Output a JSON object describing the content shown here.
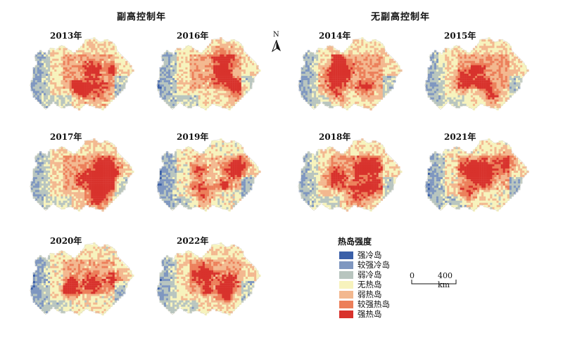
{
  "groups": {
    "with_control": "副高控制年",
    "without_control": "无副高控制年"
  },
  "panels": [
    {
      "year": "2013年",
      "seed": 11,
      "warm": 0.3
    },
    {
      "year": "2016年",
      "seed": 23,
      "warm": 0.25
    },
    {
      "year": "2017年",
      "seed": 37,
      "warm": 0.45
    },
    {
      "year": "2019年",
      "seed": 41,
      "warm": 0.05
    },
    {
      "year": "2020年",
      "seed": 53,
      "warm": 0.2
    },
    {
      "year": "2022年",
      "seed": 67,
      "warm": 0.3
    },
    {
      "year": "2014年",
      "seed": 71,
      "warm": 0.35
    },
    {
      "year": "2015年",
      "seed": 83,
      "warm": 0.4
    },
    {
      "year": "2018年",
      "seed": 97,
      "warm": 0.4
    },
    {
      "year": "2021年",
      "seed": 101,
      "warm": 0.15
    }
  ],
  "north_label": "N",
  "legend": {
    "title": "热岛强度",
    "items": [
      {
        "label": "强冷岛",
        "color": "#3a5fa8"
      },
      {
        "label": "较强冷岛",
        "color": "#7f97c0"
      },
      {
        "label": "弱冷岛",
        "color": "#b8c5bf"
      },
      {
        "label": "无热岛",
        "color": "#f7f3bd"
      },
      {
        "label": "弱热岛",
        "color": "#f3b88f"
      },
      {
        "label": "较强热岛",
        "color": "#ec7f5a"
      },
      {
        "label": "强热岛",
        "color": "#d8322c"
      }
    ]
  },
  "scale": {
    "zero": "0",
    "end": "400 km"
  }
}
